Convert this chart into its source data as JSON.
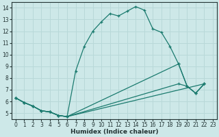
{
  "xlabel": "Humidex (Indice chaleur)",
  "xlim": [
    -0.5,
    23.5
  ],
  "ylim": [
    4.5,
    14.5
  ],
  "xtick_labels": [
    "0",
    "1",
    "2",
    "3",
    "4",
    "5",
    "6",
    "7",
    "8",
    "9",
    "10",
    "11",
    "12",
    "13",
    "14",
    "15",
    "16",
    "17",
    "18",
    "19",
    "20",
    "21",
    "22",
    "23"
  ],
  "xtick_pos": [
    0,
    1,
    2,
    3,
    4,
    5,
    6,
    7,
    8,
    9,
    10,
    11,
    12,
    13,
    14,
    15,
    16,
    17,
    18,
    19,
    20,
    21,
    22,
    23
  ],
  "yticks": [
    5,
    6,
    7,
    8,
    9,
    10,
    11,
    12,
    13,
    14
  ],
  "bg_color": "#cde8e8",
  "line_color": "#1a7a6e",
  "grid_color": "#b8d8d8",
  "lines": [
    {
      "x": [
        0,
        1,
        2,
        3,
        4,
        5,
        6,
        7,
        8,
        9,
        10,
        11,
        12,
        13,
        14,
        15,
        16,
        17,
        18,
        19,
        20,
        21,
        22
      ],
      "y": [
        6.3,
        5.9,
        5.6,
        5.2,
        5.1,
        4.8,
        4.7,
        8.6,
        10.7,
        12.0,
        12.8,
        13.5,
        13.3,
        13.7,
        14.1,
        13.8,
        12.2,
        11.9,
        10.7,
        9.2,
        7.3,
        6.7,
        7.5
      ]
    },
    {
      "x": [
        0,
        1,
        2,
        3,
        4,
        5,
        6,
        19,
        20,
        21,
        22
      ],
      "y": [
        6.3,
        5.9,
        5.6,
        5.2,
        5.1,
        4.8,
        4.7,
        9.2,
        7.3,
        6.7,
        7.5
      ]
    },
    {
      "x": [
        0,
        1,
        2,
        3,
        4,
        5,
        6,
        19,
        20,
        21,
        22
      ],
      "y": [
        6.3,
        5.9,
        5.6,
        5.2,
        5.1,
        4.8,
        4.7,
        7.5,
        7.3,
        6.7,
        7.5
      ]
    },
    {
      "x": [
        0,
        1,
        2,
        3,
        4,
        5,
        6,
        22
      ],
      "y": [
        6.3,
        5.9,
        5.6,
        5.2,
        5.1,
        4.8,
        4.7,
        7.5
      ]
    }
  ]
}
